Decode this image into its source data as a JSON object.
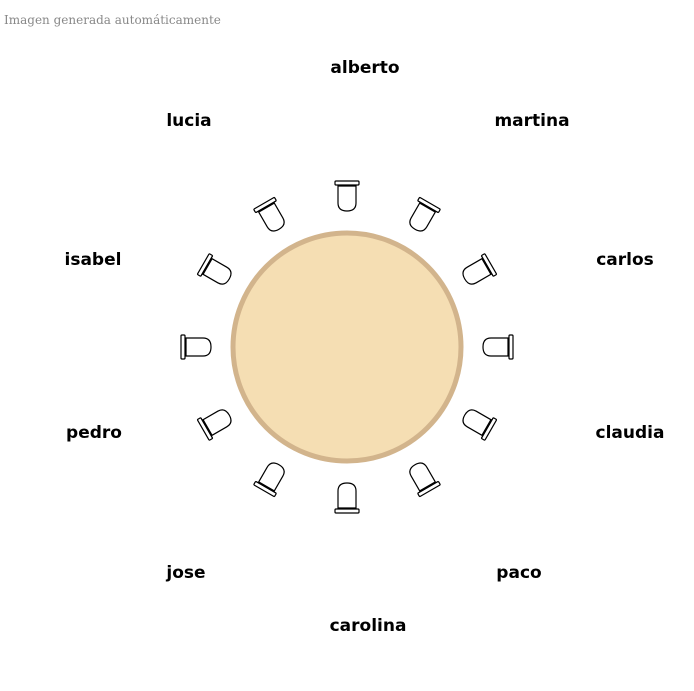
{
  "header": {
    "note": "Imagen generada automáticamente"
  },
  "table": {
    "fill_color": "#f5deb3",
    "border_color": "#d2b48c",
    "chair_count": 12
  },
  "guests": [
    "alberto",
    "martina",
    "carlos",
    "claudia",
    "paco",
    "carolina",
    "jose",
    "pedro",
    "isabel",
    "lucia"
  ]
}
